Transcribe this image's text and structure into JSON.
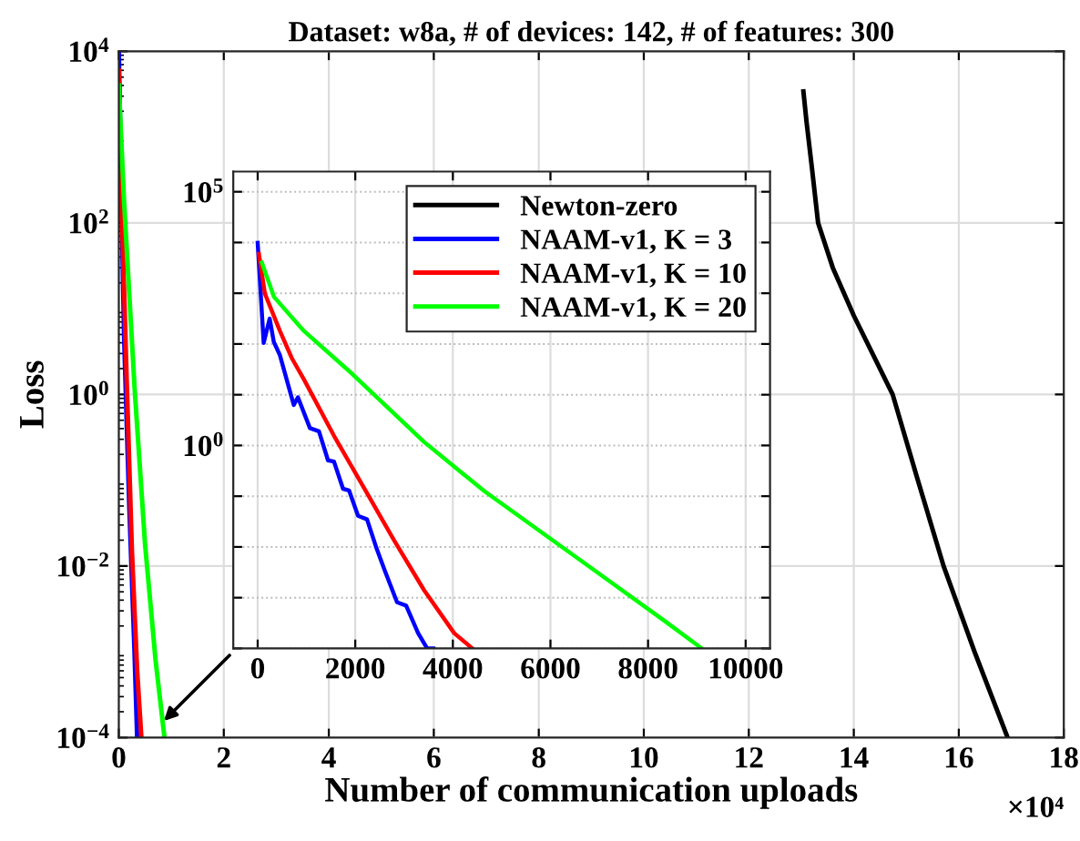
{
  "chart_data": [
    {
      "type": "line",
      "title": "Dataset: w8a, # of devices: 142, # of features: 300",
      "xlabel": "Number of communication uploads",
      "ylabel": "Loss",
      "annotations": [
        "×10⁴"
      ],
      "xlim": [
        0,
        18
      ],
      "xticks": [
        0,
        2,
        4,
        6,
        8,
        10,
        12,
        14,
        16,
        18
      ],
      "ylim": [
        0.0001,
        10000
      ],
      "yticks": [
        {
          "value": 0.0001,
          "label": "10$^{−4}$"
        },
        {
          "value": 0.01,
          "label": "10$^{−2}$"
        },
        {
          "value": 1,
          "label": "10$^{0}$"
        },
        {
          "value": 100,
          "label": "10$^{2}$"
        },
        {
          "value": 10000,
          "label": "10$^{4}$"
        }
      ],
      "log": "y",
      "grid": true,
      "legend": "top center",
      "marker": "none",
      "line_style": "solid",
      "series": [
        {
          "name": "Newton-zero",
          "color": "#000000",
          "x": [
            13.04,
            13.1,
            13.2,
            13.32,
            13.6,
            14.0,
            14.74,
            15.2,
            15.71,
            16.3,
            16.93
          ],
          "values": [
            3400,
            1500,
            450,
            100,
            30,
            8.3,
            1,
            0.11,
            0.01,
            0.001,
            0.0001
          ]
        },
        {
          "name": "NAAM-v1, K = 3",
          "color": "#0000ff",
          "x": [
            0,
            0.1,
            0.2,
            0.3,
            0.35
          ],
          "values": [
            9800,
            5,
            0.05,
            0.001,
            0.0001
          ]
        },
        {
          "name": "NAAM-v1, K = 10",
          "color": "#ff0000",
          "x": [
            0,
            0.05,
            0.15,
            0.25,
            0.35,
            0.43
          ],
          "values": [
            6000,
            200,
            1.5,
            0.015,
            0.0006,
            0.0001
          ]
        },
        {
          "name": "NAAM-v1, K = 20",
          "color": "#00ff00",
          "x": [
            0,
            0.1,
            0.3,
            0.5,
            0.7,
            0.87
          ],
          "values": [
            4000,
            180,
            1.2,
            0.018,
            0.0008,
            0.0001
          ]
        }
      ]
    },
    {
      "type": "line",
      "xlim": [
        -500,
        10500
      ],
      "xticks": [
        0,
        2000,
        4000,
        6000,
        8000,
        10000
      ],
      "ylim": [
        0.0001,
        250000
      ],
      "yticks": [
        {
          "value": 0.0001,
          "label": null
        },
        {
          "value": 0.001,
          "label": null
        },
        {
          "value": 0.01,
          "label": null
        },
        {
          "value": 0.1,
          "label": null
        },
        {
          "value": 1,
          "label": "10$^{0}$"
        },
        {
          "value": 10,
          "label": null
        },
        {
          "value": 100,
          "label": null
        },
        {
          "value": 1000,
          "label": null
        },
        {
          "value": 10000,
          "label": null
        },
        {
          "value": 100000,
          "label": "10$^{5}$"
        }
      ],
      "log": "y",
      "grid": true,
      "marker": "none",
      "line_style": "solid",
      "series": [
        {
          "color": "#0000ff",
          "x": [
            0,
            123,
            246,
            330,
            456,
            739,
            825,
            1071,
            1256,
            1441,
            1564,
            1749,
            1872,
            2057,
            2241,
            2426,
            2611,
            2857,
            3042,
            3288,
            3473,
            3600
          ],
          "values": [
            9800,
            105,
            316,
            110,
            60,
            6.3,
            8.9,
            2.2,
            1.9,
            0.51,
            0.48,
            0.14,
            0.13,
            0.041,
            0.035,
            0.01,
            0.0033,
            0.00081,
            0.0007,
            0.0002,
            0.0001,
            0.0001
          ]
        },
        {
          "color": "#ff0000",
          "x": [
            25,
            148,
            456,
            702,
            948,
            1564,
            2180,
            2795,
            3411,
            4027,
            4400
          ],
          "values": [
            6000,
            980,
            180,
            52,
            20,
            1.55,
            0.145,
            0.0135,
            0.0014,
            0.0002,
            0.0001
          ]
        },
        {
          "color": "#00ff00",
          "x": [
            86,
            333,
            948,
            1933,
            3411,
            4643,
            5874,
            7106,
            8337,
            9100
          ],
          "values": [
            4000,
            850,
            180,
            26,
            1.17,
            0.126,
            0.0178,
            0.0025,
            0.00035,
            0.0001
          ]
        }
      ]
    }
  ]
}
